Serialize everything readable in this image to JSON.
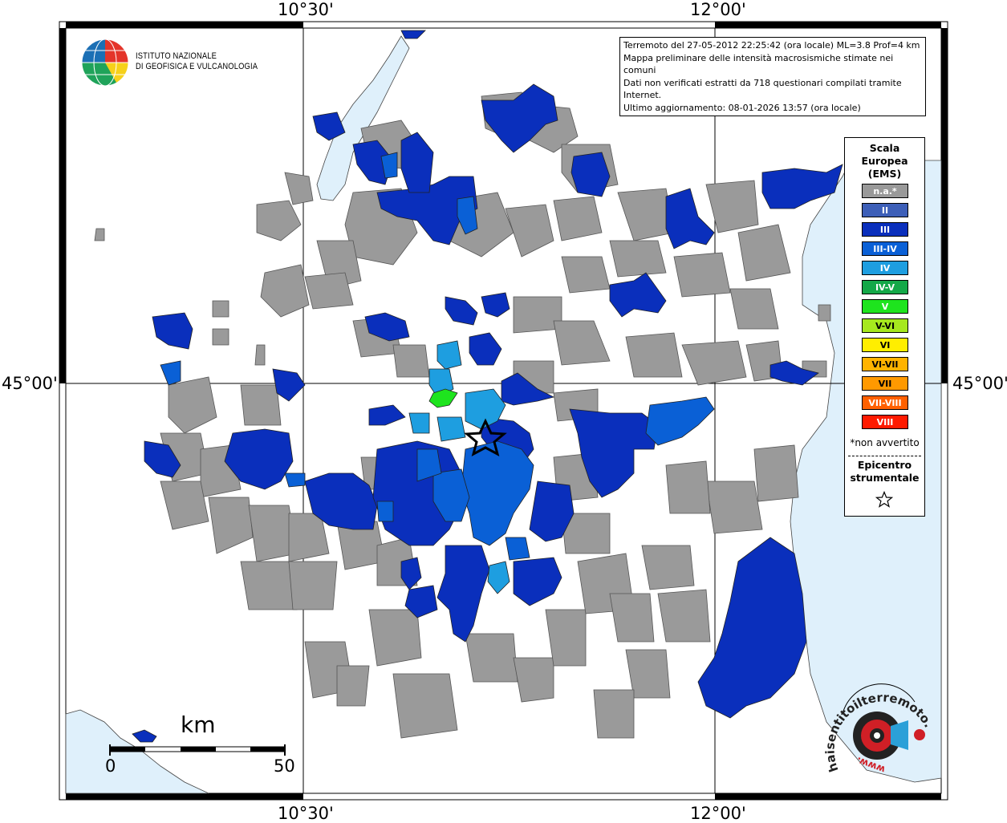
{
  "coords": {
    "top_left_lon": "10°30'",
    "top_right_lon": "12°00'",
    "bottom_left_lon": "10°30'",
    "bottom_right_lon": "12°00'",
    "left_lat": "45°00'",
    "right_lat": "45°00'"
  },
  "logo": {
    "line1": "ISTITUTO NAZIONALE",
    "line2": "DI GEOFISICA E VULCANOLOGIA"
  },
  "info": {
    "line1": "Terremoto del 27-05-2012 22:25:42 (ora locale) ML=3.8 Prof=4 km",
    "line2": "Mappa preliminare delle intensità macrosismiche stimate nei comuni",
    "line3": "Dati non verificati estratti da 718 questionari compilati tramite Internet.",
    "line4": "Ultimo aggiornamento: 08-01-2026 13:57 (ora locale)"
  },
  "legend": {
    "title1": "Scala",
    "title2": "Europea",
    "title3": "(EMS)",
    "items": [
      {
        "label": "n.a.*",
        "color": "#999999"
      },
      {
        "label": "II",
        "color": "#3d5fb8"
      },
      {
        "label": "III",
        "color": "#0a2fbc"
      },
      {
        "label": "III-IV",
        "color": "#0a60d6"
      },
      {
        "label": "IV",
        "color": "#1e9ee0"
      },
      {
        "label": "IV-V",
        "color": "#14a848"
      },
      {
        "label": "V",
        "color": "#1ee41e"
      },
      {
        "label": "V-VI",
        "color": "#a6e81e"
      },
      {
        "label": "VI",
        "color": "#ffee00"
      },
      {
        "label": "VI-VII",
        "color": "#ffb300"
      },
      {
        "label": "VII",
        "color": "#ff9900"
      },
      {
        "label": "VII-VIII",
        "color": "#ff6000"
      },
      {
        "label": "VIII",
        "color": "#ff1a00"
      }
    ],
    "note": "*non avvertito",
    "epicenter1": "Epicentro",
    "epicenter2": "strumentale"
  },
  "scale": {
    "unit": "km",
    "start": "0",
    "end": "50"
  },
  "badge": {
    "text_top": "haisentitoilterremoto.it",
    "text_bottom": "www."
  },
  "colors": {
    "sea": "#dff0fb",
    "na": "#9a9a9a",
    "III": "#0a2fbc",
    "III-IV": "#0a60d6",
    "IV": "#1e9ee0",
    "V": "#1ee41e"
  }
}
